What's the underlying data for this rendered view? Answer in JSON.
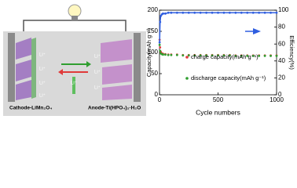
{
  "diagram": {
    "cathode_label": "Cathode-LiMn₂O₄",
    "anode_label": "Anode-Ti(HPO₄)₂·H₂O",
    "ion_labels": [
      "Li⁺",
      "Li⁺",
      "Li⁺",
      "Li⁺",
      "Li⁺",
      "Li⁺",
      "Li⁺",
      "Li⁺"
    ]
  },
  "chart_data": {
    "type": "scatter",
    "x_label": "Cycle numbers",
    "y_label": "Capacity(mAh g⁻¹)",
    "y2_label": "Efficiency(%)",
    "x": [
      1,
      5,
      10,
      20,
      30,
      50,
      75,
      100,
      150,
      200,
      250,
      300,
      350,
      400,
      450,
      500,
      550,
      600,
      650,
      700,
      750,
      800,
      850,
      900,
      950,
      1000
    ],
    "series": [
      {
        "name": "charge capacity(mAh g⁻¹)",
        "color": "#e03a3a",
        "values": [
          130,
          112,
          102,
          98,
          97,
          96,
          95,
          95,
          95,
          94,
          94,
          94,
          94,
          94,
          94,
          94,
          94,
          94,
          93,
          93,
          93,
          93,
          93,
          93,
          93,
          93
        ]
      },
      {
        "name": "discharge capacity(mAh g⁻¹)",
        "color": "#2f9e2f",
        "values": [
          118,
          104,
          98,
          96,
          95,
          95,
          94,
          94,
          94,
          93,
          93,
          93,
          93,
          93,
          93,
          93,
          93,
          93,
          92,
          92,
          92,
          92,
          92,
          92,
          92,
          92
        ]
      },
      {
        "name": "Efficiency",
        "color": "#2f5ee0",
        "axis": "y2",
        "values": [
          62,
          86,
          93,
          95,
          96,
          96,
          97,
          97,
          97,
          97,
          97,
          97,
          97,
          97,
          97,
          97,
          97,
          97,
          97,
          97,
          97,
          97,
          97,
          97,
          97,
          97
        ]
      }
    ],
    "xlim": [
      0,
      1000
    ],
    "xticks": [
      0,
      500,
      1000
    ],
    "ylim": [
      0,
      200
    ],
    "yticks": [
      0,
      50,
      100,
      150,
      200
    ],
    "y2lim": [
      0,
      100
    ],
    "y2ticks": [
      0,
      20,
      40,
      60,
      80,
      100
    ],
    "legend_series": [
      0,
      1
    ],
    "legend": "center"
  }
}
